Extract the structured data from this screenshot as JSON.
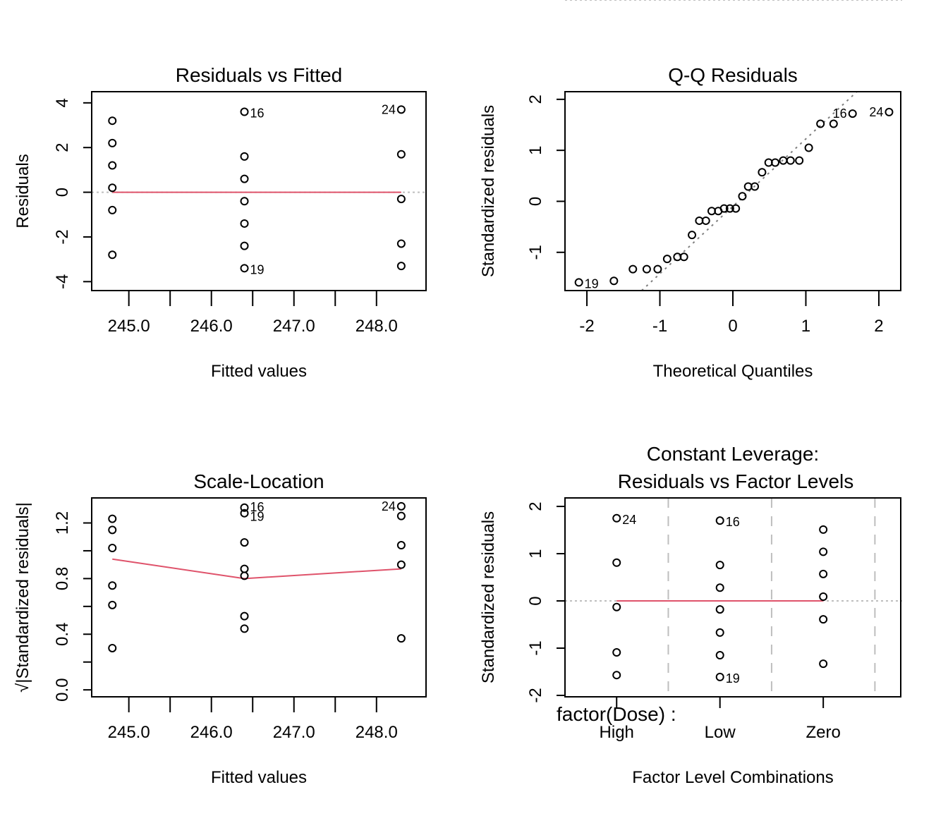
{
  "chart_data": [
    {
      "id": "residuals_vs_fitted",
      "type": "scatter",
      "title": "Residuals vs Fitted",
      "xlabel": "Fitted values",
      "ylabel": "Residuals",
      "xlim": [
        244.55,
        248.6
      ],
      "ylim": [
        -4.4,
        4.5
      ],
      "xticks": [
        245.0,
        246.0,
        247.0,
        248.0
      ],
      "xtick_labels": [
        "245.0",
        "246.0",
        "247.0",
        "248.0"
      ],
      "xminor_ticks": [
        245.5,
        246.5,
        247.5
      ],
      "yticks": [
        -4,
        -2,
        0,
        2,
        4
      ],
      "ytick_labels": [
        "-4",
        "-2",
        "0",
        "2",
        "4"
      ],
      "grid": false,
      "reference_line": {
        "y": 0,
        "style": "dotted",
        "color": "#bebebe"
      },
      "smooth_line": {
        "color": "#df536b",
        "x": [
          244.8,
          246.4,
          248.3
        ],
        "y": [
          0,
          0,
          0
        ]
      },
      "points": [
        {
          "x": 244.8,
          "y": 3.2
        },
        {
          "x": 244.8,
          "y": 2.2
        },
        {
          "x": 244.8,
          "y": 1.2
        },
        {
          "x": 244.8,
          "y": 0.2
        },
        {
          "x": 244.8,
          "y": -0.8
        },
        {
          "x": 244.8,
          "y": -2.8
        },
        {
          "x": 246.4,
          "y": 3.6,
          "label": "16"
        },
        {
          "x": 246.4,
          "y": 1.6
        },
        {
          "x": 246.4,
          "y": 0.6
        },
        {
          "x": 246.4,
          "y": -0.4
        },
        {
          "x": 246.4,
          "y": -1.4
        },
        {
          "x": 246.4,
          "y": -2.4
        },
        {
          "x": 246.4,
          "y": -3.4,
          "label": "19"
        },
        {
          "x": 248.3,
          "y": 3.7,
          "label": "24",
          "label_side": "left"
        },
        {
          "x": 248.3,
          "y": 1.7
        },
        {
          "x": 248.3,
          "y": -0.3
        },
        {
          "x": 248.3,
          "y": -2.3
        },
        {
          "x": 248.3,
          "y": -3.3
        }
      ]
    },
    {
      "id": "qq_residuals",
      "type": "scatter",
      "title": "Q-Q Residuals",
      "xlabel": "Theoretical Quantiles",
      "ylabel": "Standardized residuals",
      "xlim": [
        -2.3,
        2.3
      ],
      "ylim": [
        -1.75,
        2.15
      ],
      "xticks": [
        -2,
        -1,
        0,
        1,
        2
      ],
      "xtick_labels": [
        "-2",
        "-1",
        "0",
        "1",
        "2"
      ],
      "yticks": [
        -1,
        0,
        1,
        2
      ],
      "ytick_labels": [
        "-1",
        "0",
        "1",
        "2"
      ],
      "grid": false,
      "reference_line": {
        "style": "dotted",
        "color": "#7f7f7f",
        "x": [
          -1.25,
          1.7
        ],
        "y": [
          -1.75,
          2.15
        ]
      },
      "points": [
        {
          "x": -2.11,
          "y": -1.59,
          "label": "19"
        },
        {
          "x": -1.63,
          "y": -1.56
        },
        {
          "x": -1.37,
          "y": -1.33
        },
        {
          "x": -1.18,
          "y": -1.33
        },
        {
          "x": -1.03,
          "y": -1.33
        },
        {
          "x": -0.9,
          "y": -1.13
        },
        {
          "x": -0.76,
          "y": -1.09
        },
        {
          "x": -0.67,
          "y": -1.09
        },
        {
          "x": -0.56,
          "y": -0.66
        },
        {
          "x": -0.46,
          "y": -0.38
        },
        {
          "x": -0.37,
          "y": -0.38
        },
        {
          "x": -0.29,
          "y": -0.19
        },
        {
          "x": -0.2,
          "y": -0.19
        },
        {
          "x": -0.12,
          "y": -0.14
        },
        {
          "x": -0.04,
          "y": -0.14
        },
        {
          "x": 0.04,
          "y": -0.14
        },
        {
          "x": 0.13,
          "y": 0.1
        },
        {
          "x": 0.21,
          "y": 0.29
        },
        {
          "x": 0.3,
          "y": 0.29
        },
        {
          "x": 0.4,
          "y": 0.57
        },
        {
          "x": 0.49,
          "y": 0.76
        },
        {
          "x": 0.58,
          "y": 0.76
        },
        {
          "x": 0.69,
          "y": 0.8
        },
        {
          "x": 0.79,
          "y": 0.8
        },
        {
          "x": 0.91,
          "y": 0.8
        },
        {
          "x": 1.04,
          "y": 1.05
        },
        {
          "x": 1.2,
          "y": 1.52
        },
        {
          "x": 1.38,
          "y": 1.52
        },
        {
          "x": 1.64,
          "y": 1.72,
          "label": "16",
          "label_side": "left"
        },
        {
          "x": 2.14,
          "y": 1.75,
          "label": "24",
          "label_side": "left"
        }
      ]
    },
    {
      "id": "scale_location",
      "type": "scatter",
      "title": "Scale-Location",
      "xlabel": "Fitted values",
      "ylabel": "√|Standardized residuals|",
      "xlim": [
        244.55,
        248.6
      ],
      "ylim": [
        -0.05,
        1.38
      ],
      "xticks": [
        245.0,
        246.0,
        247.0,
        248.0
      ],
      "xtick_labels": [
        "245.0",
        "246.0",
        "247.0",
        "248.0"
      ],
      "xminor_ticks": [
        245.5,
        246.5,
        247.5
      ],
      "yticks": [
        0.0,
        0.4,
        0.8,
        1.2
      ],
      "ytick_labels": [
        "0.0",
        "0.4",
        "0.8",
        "1.2"
      ],
      "yminor_ticks": [
        0.2,
        0.6,
        1.0
      ],
      "grid": false,
      "smooth_line": {
        "color": "#df536b",
        "x": [
          244.8,
          246.4,
          248.3
        ],
        "y": [
          0.94,
          0.8,
          0.87
        ]
      },
      "points": [
        {
          "x": 244.8,
          "y": 1.23
        },
        {
          "x": 244.8,
          "y": 1.15
        },
        {
          "x": 244.8,
          "y": 1.02
        },
        {
          "x": 244.8,
          "y": 0.75
        },
        {
          "x": 244.8,
          "y": 0.61
        },
        {
          "x": 244.8,
          "y": 0.3
        },
        {
          "x": 246.4,
          "y": 1.31,
          "label": "16",
          "label_dy": -3
        },
        {
          "x": 246.4,
          "y": 1.27,
          "label": "19",
          "label_dy": 3
        },
        {
          "x": 246.4,
          "y": 1.06
        },
        {
          "x": 246.4,
          "y": 0.87
        },
        {
          "x": 246.4,
          "y": 0.82
        },
        {
          "x": 246.4,
          "y": 0.53
        },
        {
          "x": 246.4,
          "y": 0.44
        },
        {
          "x": 248.3,
          "y": 1.32,
          "label": "24",
          "label_side": "left"
        },
        {
          "x": 248.3,
          "y": 1.25
        },
        {
          "x": 248.3,
          "y": 1.04
        },
        {
          "x": 248.3,
          "y": 0.9
        },
        {
          "x": 248.3,
          "y": 0.37
        }
      ]
    },
    {
      "id": "residuals_vs_factor_levels",
      "type": "scatter",
      "title": "Constant Leverage:",
      "subtitle": "Residuals vs Factor Levels",
      "xlabel": "Factor Level Combinations",
      "ylabel": "Standardized residuals",
      "factor_label": "factor(Dose) :",
      "categories": [
        "High",
        "Low",
        "Zero"
      ],
      "xlim": [
        0.5,
        3.75
      ],
      "ylim": [
        -2.03,
        2.18
      ],
      "yticks": [
        -2,
        -1,
        0,
        1,
        2
      ],
      "ytick_labels": [
        "-2",
        "-1",
        "0",
        "1",
        "2"
      ],
      "grid": false,
      "vertical_dashed_lines": [
        0.5,
        1.5,
        2.5,
        3.5
      ],
      "reference_line": {
        "y": 0,
        "style": "dotted",
        "color": "#bebebe"
      },
      "smooth_line": {
        "color": "#df536b",
        "x": [
          1,
          2,
          3
        ],
        "y": [
          0,
          0,
          0
        ]
      },
      "series": [
        {
          "name": "High",
          "x": 1,
          "values": [
            1.75,
            0.81,
            -0.13,
            -1.09,
            -1.57
          ],
          "labels": {
            "0": "24"
          }
        },
        {
          "name": "Low",
          "x": 2,
          "values": [
            1.7,
            0.76,
            0.28,
            -0.18,
            -0.67,
            -1.15,
            -1.61
          ],
          "labels": {
            "0": "16",
            "6": "19"
          }
        },
        {
          "name": "Zero",
          "x": 3,
          "values": [
            1.51,
            1.04,
            0.57,
            0.09,
            -0.39,
            -1.33
          ],
          "labels": {}
        }
      ]
    }
  ],
  "colors": {
    "points": "#000000",
    "smooth_line": "#df536b",
    "reference_dotted": "#bebebe",
    "qq_line": "#7f7f7f",
    "dashed_grid": "#bebebe"
  }
}
